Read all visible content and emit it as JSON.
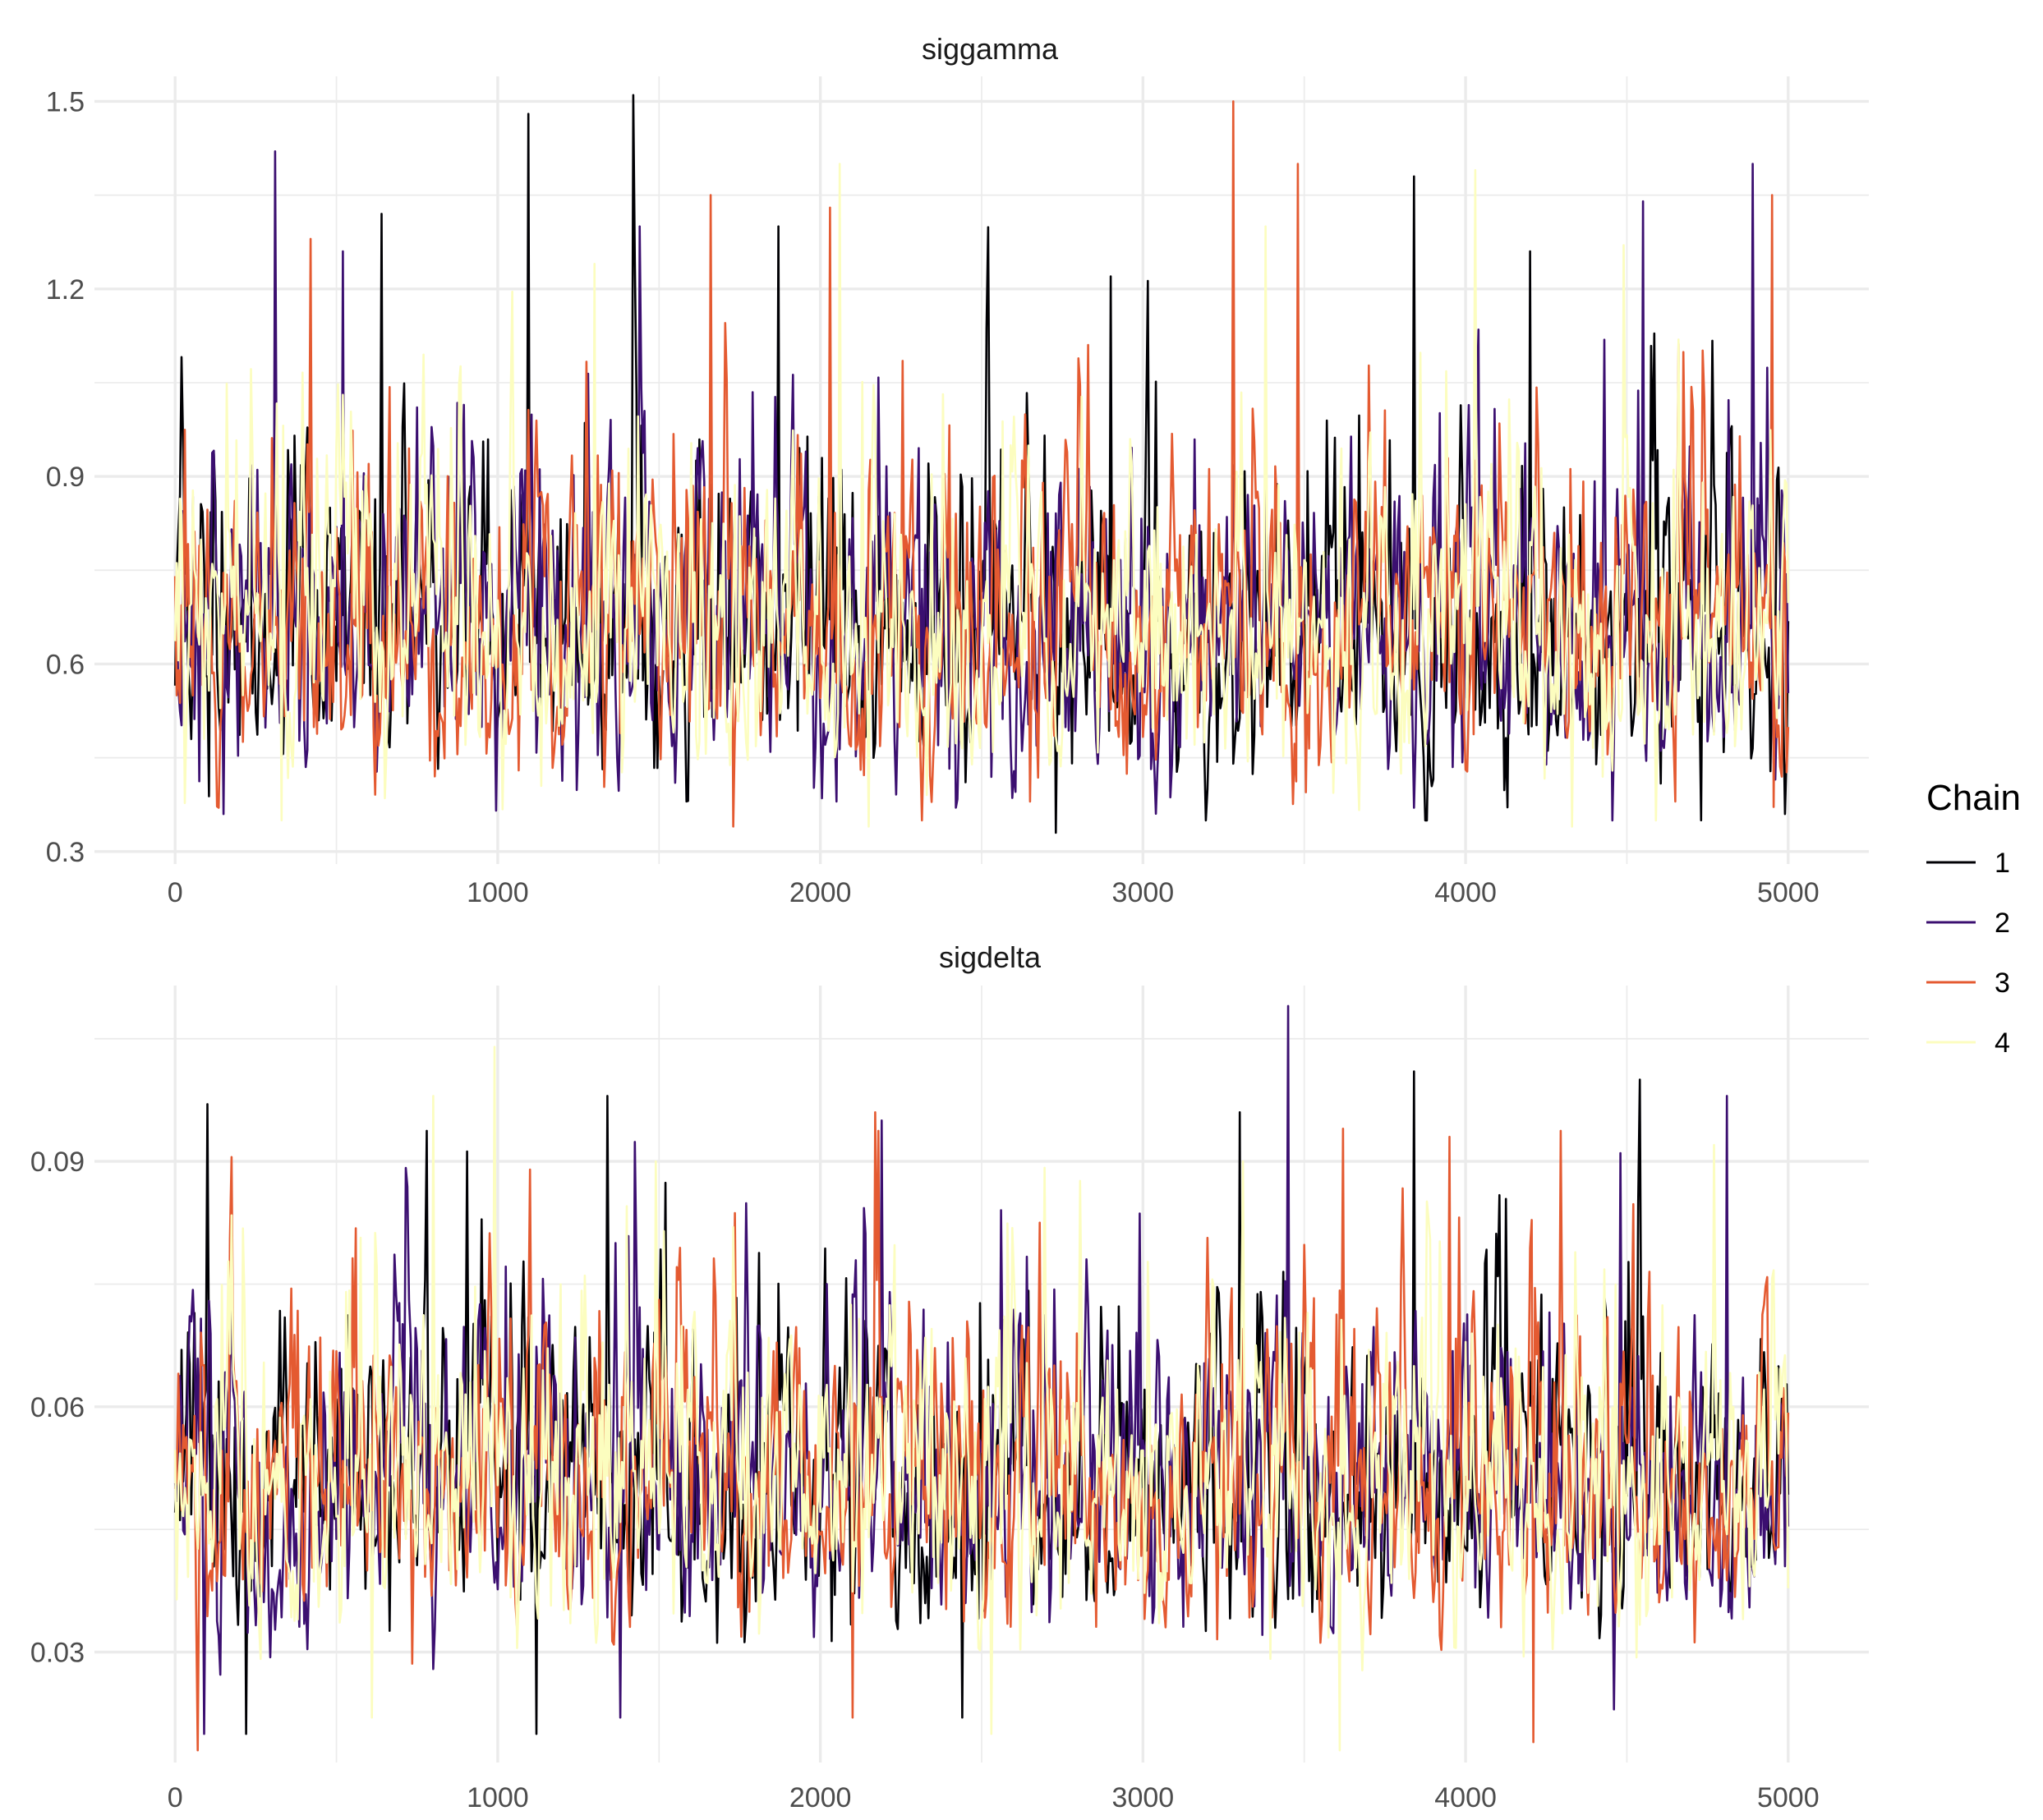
{
  "colors": {
    "chain_colors": [
      "#000004",
      "#3b0f70",
      "#e45a31",
      "#fcfdbf"
    ],
    "grid": "#ebebeb",
    "text": "#4d4d4d",
    "background": "#ffffff"
  },
  "legend": {
    "title": "Chain",
    "items": [
      "1",
      "2",
      "3",
      "4"
    ],
    "placement": "right"
  },
  "chart_data": [
    {
      "type": "line",
      "title": "siggamma",
      "xlabel": "",
      "ylabel": "",
      "xlim": [
        -250,
        5250
      ],
      "ylim": [
        0.28,
        1.54
      ],
      "x_ticks": [
        0,
        1000,
        2000,
        3000,
        4000,
        5000
      ],
      "x_tick_labels": [
        "0",
        "1000",
        "2000",
        "3000",
        "4000",
        "5000"
      ],
      "y_ticks": [
        0.3,
        0.6,
        0.9,
        1.2,
        1.5
      ],
      "y_tick_labels": [
        "0.3",
        "0.6",
        "0.9",
        "1.2",
        "1.5"
      ],
      "grid": true,
      "series_stats": {
        "n_iter": 5000,
        "mean": 0.66,
        "sd": 0.14,
        "min": 0.33,
        "max": 1.51
      },
      "series": [
        {
          "name": "1",
          "peaks": [
            [
              1095,
              1.48
            ],
            [
              1420,
              1.51
            ],
            [
              640,
              1.32
            ],
            [
              1870,
              1.3
            ],
            [
              2900,
              1.22
            ],
            [
              3840,
              1.38
            ],
            [
              4200,
              1.26
            ]
          ],
          "troughs": [
            [
              2730,
              0.33
            ],
            [
              4730,
              0.35
            ],
            [
              4990,
              0.36
            ]
          ]
        },
        {
          "name": "2",
          "peaks": [
            [
              310,
              1.42
            ],
            [
              520,
              1.26
            ],
            [
              4890,
              1.4
            ],
            [
              4550,
              1.34
            ],
            [
              1440,
              1.3
            ]
          ],
          "troughs": [
            [
              150,
              0.36
            ],
            [
              3840,
              0.37
            ],
            [
              2050,
              0.38
            ]
          ]
        },
        {
          "name": "3",
          "peaks": [
            [
              3280,
              1.5
            ],
            [
              3480,
              1.4
            ],
            [
              1660,
              1.35
            ],
            [
              4950,
              1.35
            ],
            [
              2030,
              1.33
            ],
            [
              420,
              1.28
            ]
          ],
          "troughs": [
            [
              1730,
              0.34
            ],
            [
              2650,
              0.38
            ],
            [
              4650,
              0.38
            ]
          ]
        },
        {
          "name": "4",
          "peaks": [
            [
              2060,
              1.4
            ],
            [
              4030,
              1.39
            ],
            [
              1300,
              1.24
            ],
            [
              3380,
              1.3
            ],
            [
              4490,
              1.27
            ]
          ],
          "troughs": [
            [
              330,
              0.35
            ],
            [
              2150,
              0.34
            ],
            [
              4330,
              0.34
            ]
          ]
        }
      ]
    },
    {
      "type": "line",
      "title": "sigdelta",
      "xlabel": "",
      "ylabel": "",
      "xlim": [
        -250,
        5250
      ],
      "ylim": [
        0.0165,
        0.1115
      ],
      "x_ticks": [
        0,
        1000,
        2000,
        3000,
        4000,
        5000
      ],
      "x_tick_labels": [
        "0",
        "1000",
        "2000",
        "3000",
        "4000",
        "5000"
      ],
      "y_ticks": [
        0.03,
        0.06,
        0.09
      ],
      "y_tick_labels": [
        "0.03",
        "0.06",
        "0.09"
      ],
      "grid": true,
      "series_stats": {
        "n_iter": 5000,
        "mean": 0.051,
        "sd": 0.0105,
        "min": 0.018,
        "max": 0.109
      },
      "series": [
        {
          "name": "1",
          "peaks": [
            [
              3840,
              0.101
            ],
            [
              4540,
              0.1
            ],
            [
              1340,
              0.098
            ],
            [
              100,
              0.097
            ],
            [
              3300,
              0.096
            ]
          ],
          "troughs": [
            [
              220,
              0.02
            ],
            [
              1120,
              0.02
            ],
            [
              2440,
              0.022
            ]
          ]
        },
        {
          "name": "2",
          "peaks": [
            [
              3450,
              0.109
            ],
            [
              4810,
              0.098
            ],
            [
              2190,
              0.095
            ],
            [
              4480,
              0.091
            ]
          ],
          "troughs": [
            [
              90,
              0.02
            ],
            [
              1380,
              0.022
            ],
            [
              4460,
              0.023
            ]
          ]
        },
        {
          "name": "3",
          "peaks": [
            [
              2170,
              0.096
            ],
            [
              3620,
              0.094
            ],
            [
              3950,
              0.093
            ],
            [
              1100,
              0.089
            ]
          ],
          "troughs": [
            [
              70,
              0.018
            ],
            [
              4210,
              0.019
            ],
            [
              2100,
              0.022
            ]
          ]
        },
        {
          "name": "4",
          "peaks": [
            [
              990,
              0.104
            ],
            [
              800,
              0.098
            ],
            [
              3310,
              0.09
            ],
            [
              1490,
              0.09
            ],
            [
              4770,
              0.092
            ]
          ],
          "troughs": [
            [
              3610,
              0.018
            ],
            [
              2530,
              0.02
            ],
            [
              610,
              0.022
            ]
          ]
        }
      ]
    }
  ]
}
